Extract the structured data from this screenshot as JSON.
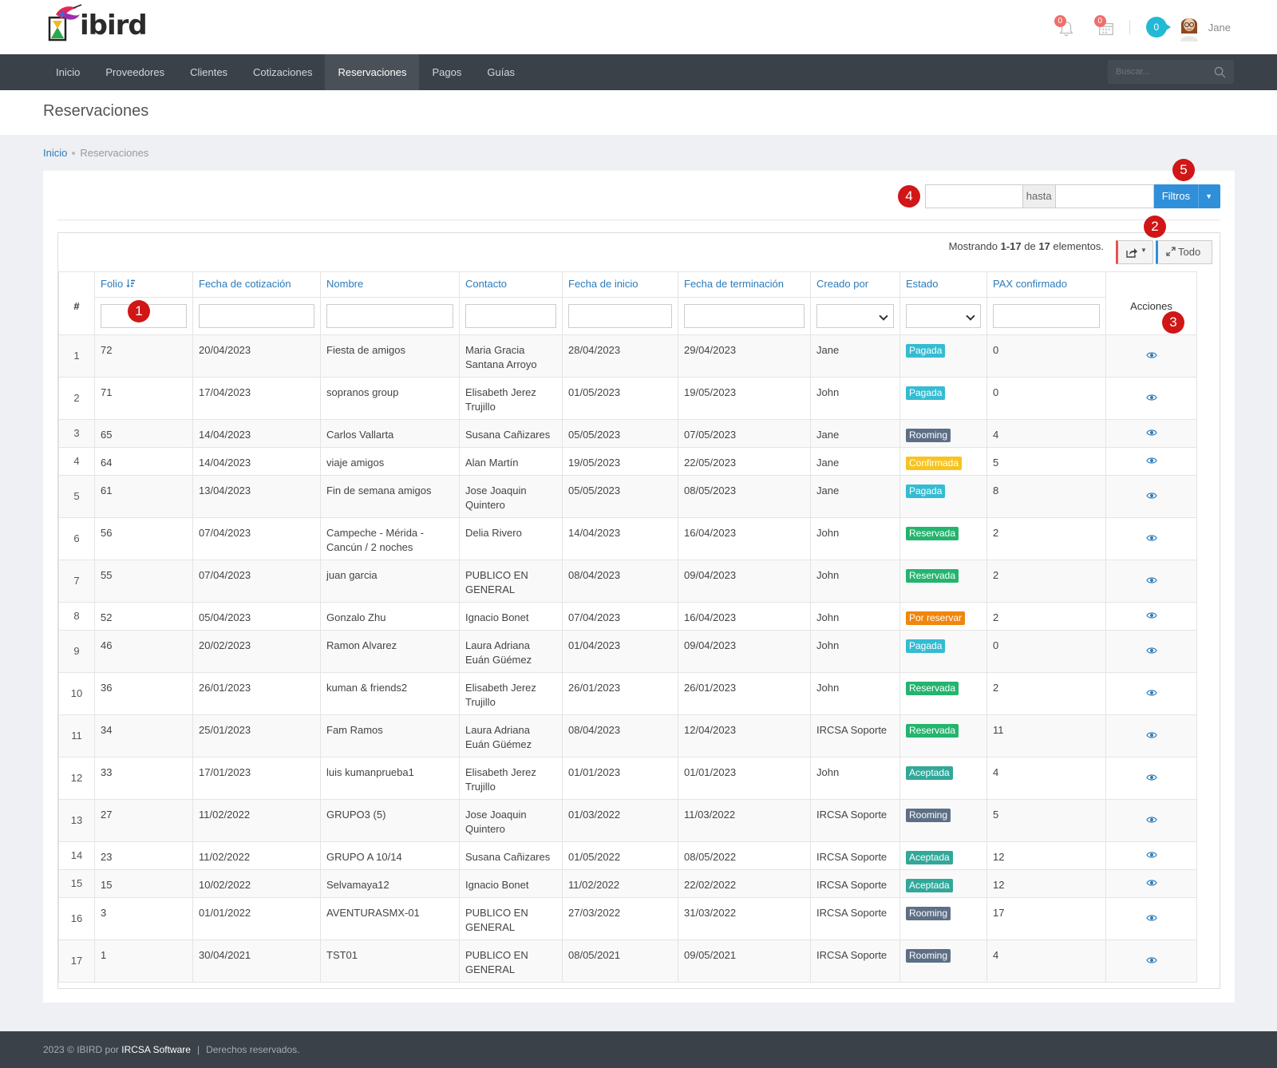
{
  "header": {
    "logo_text": "ibird",
    "notifications_count": "0",
    "calendar_count": "0",
    "messages_count": "0",
    "user_name": "Jane"
  },
  "nav": {
    "items": [
      "Inicio",
      "Proveedores",
      "Clientes",
      "Cotizaciones",
      "Reservaciones",
      "Pagos",
      "Guías"
    ],
    "active": "Reservaciones",
    "search_placeholder": "Buscar..."
  },
  "page": {
    "title": "Reservaciones",
    "breadcrumb": [
      "Inicio",
      "Reservaciones"
    ]
  },
  "filters": {
    "hasta_label": "hasta",
    "filtros_label": "Filtros"
  },
  "grid": {
    "summary_prefix": "Mostrando ",
    "summary_range": "1-17",
    "summary_mid": " de ",
    "summary_total": "17",
    "summary_suffix": " elementos.",
    "todo_label": "Todo",
    "columns": {
      "num": "#",
      "folio": "Folio",
      "fecha_cot": "Fecha de cotización",
      "nombre": "Nombre",
      "contacto": "Contacto",
      "fecha_ini": "Fecha de inicio",
      "fecha_fin": "Fecha de terminación",
      "creado": "Creado por",
      "estado": "Estado",
      "pax": "PAX confirmado",
      "acciones": "Acciones"
    },
    "rows": [
      {
        "n": "1",
        "folio": "72",
        "fcot": "20/04/2023",
        "nombre": "Fiesta de amigos",
        "contacto": "Maria Gracia Santana Arroyo",
        "fini": "28/04/2023",
        "ffin": "29/04/2023",
        "creado": "Jane",
        "estado": "Pagada",
        "pax": "0"
      },
      {
        "n": "2",
        "folio": "71",
        "fcot": "17/04/2023",
        "nombre": "sopranos group",
        "contacto": "Elisabeth Jerez Trujillo",
        "fini": "01/05/2023",
        "ffin": "19/05/2023",
        "creado": "John",
        "estado": "Pagada",
        "pax": "0"
      },
      {
        "n": "3",
        "folio": "65",
        "fcot": "14/04/2023",
        "nombre": "Carlos Vallarta",
        "contacto": "Susana Cañizares",
        "fini": "05/05/2023",
        "ffin": "07/05/2023",
        "creado": "Jane",
        "estado": "Rooming",
        "pax": "4"
      },
      {
        "n": "4",
        "folio": "64",
        "fcot": "14/04/2023",
        "nombre": "viaje amigos",
        "contacto": "Alan Martín",
        "fini": "19/05/2023",
        "ffin": "22/05/2023",
        "creado": "Jane",
        "estado": "Confirmada",
        "pax": "5"
      },
      {
        "n": "5",
        "folio": "61",
        "fcot": "13/04/2023",
        "nombre": "Fin de semana amigos",
        "contacto": "Jose Joaquin Quintero",
        "fini": "05/05/2023",
        "ffin": "08/05/2023",
        "creado": "Jane",
        "estado": "Pagada",
        "pax": "8"
      },
      {
        "n": "6",
        "folio": "56",
        "fcot": "07/04/2023",
        "nombre": "Campeche - Mérida - Cancún / 2 noches",
        "contacto": "Delia Rivero",
        "fini": "14/04/2023",
        "ffin": "16/04/2023",
        "creado": "John",
        "estado": "Reservada",
        "pax": "2"
      },
      {
        "n": "7",
        "folio": "55",
        "fcot": "07/04/2023",
        "nombre": "juan garcia",
        "contacto": "PUBLICO EN GENERAL",
        "fini": "08/04/2023",
        "ffin": "09/04/2023",
        "creado": "John",
        "estado": "Reservada",
        "pax": "2"
      },
      {
        "n": "8",
        "folio": "52",
        "fcot": "05/04/2023",
        "nombre": "Gonzalo Zhu",
        "contacto": "Ignacio Bonet",
        "fini": "07/04/2023",
        "ffin": "16/04/2023",
        "creado": "John",
        "estado": "Por reservar",
        "pax": "2"
      },
      {
        "n": "9",
        "folio": "46",
        "fcot": "20/02/2023",
        "nombre": "Ramon Alvarez",
        "contacto": "Laura Adriana Euán Güémez",
        "fini": "01/04/2023",
        "ffin": "09/04/2023",
        "creado": "John",
        "estado": "Pagada",
        "pax": "0"
      },
      {
        "n": "10",
        "folio": "36",
        "fcot": "26/01/2023",
        "nombre": "kuman & friends2",
        "contacto": "Elisabeth Jerez Trujillo",
        "fini": "26/01/2023",
        "ffin": "26/01/2023",
        "creado": "John",
        "estado": "Reservada",
        "pax": "2"
      },
      {
        "n": "11",
        "folio": "34",
        "fcot": "25/01/2023",
        "nombre": "Fam Ramos",
        "contacto": "Laura Adriana Euán Güémez",
        "fini": "08/04/2023",
        "ffin": "12/04/2023",
        "creado": "IRCSA Soporte",
        "estado": "Reservada",
        "pax": "11"
      },
      {
        "n": "12",
        "folio": "33",
        "fcot": "17/01/2023",
        "nombre": "luis kumanprueba1",
        "contacto": "Elisabeth Jerez Trujillo",
        "fini": "01/01/2023",
        "ffin": "01/01/2023",
        "creado": "John",
        "estado": "Aceptada",
        "pax": "4"
      },
      {
        "n": "13",
        "folio": "27",
        "fcot": "11/02/2022",
        "nombre": "GRUPO3 (5)",
        "contacto": "Jose Joaquin Quintero",
        "fini": "01/03/2022",
        "ffin": "11/03/2022",
        "creado": "IRCSA Soporte",
        "estado": "Rooming",
        "pax": "5"
      },
      {
        "n": "14",
        "folio": "23",
        "fcot": "11/02/2022",
        "nombre": "GRUPO A 10/14",
        "contacto": "Susana Cañizares",
        "fini": "01/05/2022",
        "ffin": "08/05/2022",
        "creado": "IRCSA Soporte",
        "estado": "Aceptada",
        "pax": "12"
      },
      {
        "n": "15",
        "folio": "15",
        "fcot": "10/02/2022",
        "nombre": "Selvamaya12",
        "contacto": "Ignacio Bonet",
        "fini": "11/02/2022",
        "ffin": "22/02/2022",
        "creado": "IRCSA Soporte",
        "estado": "Aceptada",
        "pax": "12"
      },
      {
        "n": "16",
        "folio": "3",
        "fcot": "01/01/2022",
        "nombre": "AVENTURASMX-01",
        "contacto": "PUBLICO EN GENERAL",
        "fini": "27/03/2022",
        "ffin": "31/03/2022",
        "creado": "IRCSA Soporte",
        "estado": "Rooming",
        "pax": "17"
      },
      {
        "n": "17",
        "folio": "1",
        "fcot": "30/04/2021",
        "nombre": "TST01",
        "contacto": "PUBLICO EN GENERAL",
        "fini": "08/05/2021",
        "ffin": "09/05/2021",
        "creado": "IRCSA Soporte",
        "estado": "Rooming",
        "pax": "4"
      }
    ]
  },
  "markers": [
    "1",
    "2",
    "3",
    "4",
    "5"
  ],
  "status_colors": {
    "Pagada": "#33bcd2",
    "Rooming": "#5d6f86",
    "Confirmada": "#f7c41f",
    "Reservada": "#24b46e",
    "Por reservar": "#f0860d",
    "Aceptada": "#31a89a"
  },
  "footer": {
    "prefix": "2023 © IBIRD por ",
    "company": "IRCSA Software",
    "separator": "|",
    "rights": "Derechos reservados."
  }
}
